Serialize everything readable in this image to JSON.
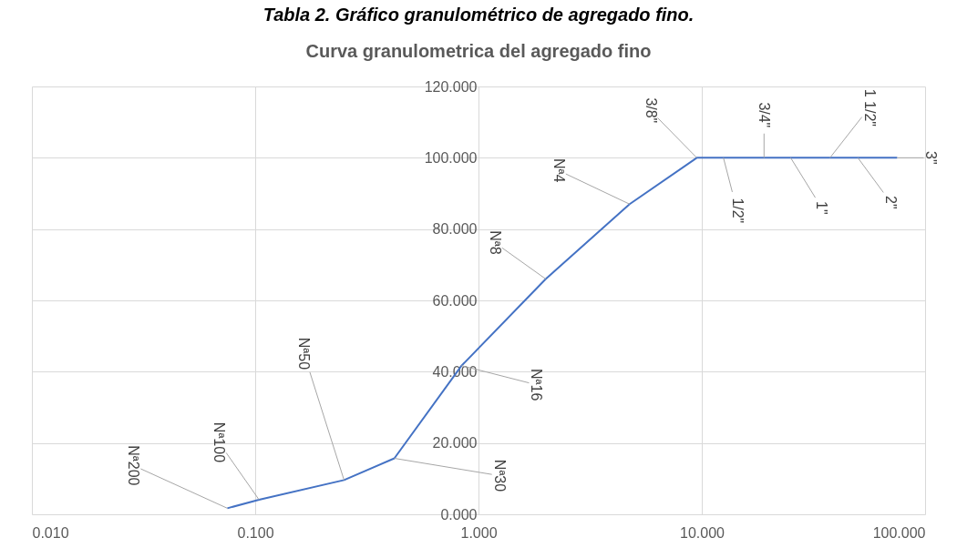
{
  "chart_data": {
    "type": "line",
    "title": "Curva granulometrica del agregado fino",
    "annotations": [
      "Tabla 2. Gráfico granulométrico de agregado fino.",
      {
        "text": "Nª200",
        "x": 0.075,
        "y": 1.7
      },
      {
        "text": "Nª100",
        "x": 0.104,
        "y": 4.1
      },
      {
        "text": "Nª50",
        "x": 0.25,
        "y": 9.6
      },
      {
        "text": "Nª30",
        "x": 0.42,
        "y": 15.7
      },
      {
        "text": "Nª16",
        "x": 0.84,
        "y": 41.7
      },
      {
        "text": "Nª8",
        "x": 2.0,
        "y": 66
      },
      {
        "text": "Nª4",
        "x": 4.75,
        "y": 87
      },
      {
        "text": "3/8\"",
        "x": 9.5,
        "y": 100
      },
      {
        "text": "1/2\"",
        "x": 12.5,
        "y": 100
      },
      {
        "text": "3/4\"",
        "x": 19,
        "y": 100
      },
      {
        "text": "1\"",
        "x": 25,
        "y": 100
      },
      {
        "text": "1 1/2\"",
        "x": 37.5,
        "y": 100
      },
      {
        "text": "2\"",
        "x": 50,
        "y": 100
      },
      {
        "text": "3\"",
        "x": 75,
        "y": 100
      }
    ],
    "x": [
      0.075,
      0.104,
      0.25,
      0.42,
      0.84,
      2.0,
      4.75,
      9.5,
      12.5,
      19,
      25,
      37.5,
      50,
      75
    ],
    "series": [
      {
        "color": "#4472c4",
        "values": [
          1.7,
          4.1,
          9.6,
          15.7,
          41.7,
          66,
          87,
          100,
          100,
          100,
          100,
          100,
          100,
          100
        ]
      }
    ],
    "log": "x",
    "xlim": [
      0.01,
      100
    ],
    "xticks": [
      {
        "value": 0.01,
        "label": "0.010"
      },
      {
        "value": 0.1,
        "label": "0.100"
      },
      {
        "value": 1,
        "label": "1.000"
      },
      {
        "value": 10,
        "label": "10.000"
      },
      {
        "value": 100,
        "label": "100.000"
      }
    ],
    "ylim": [
      0,
      120
    ],
    "yticks": [
      {
        "value": 0,
        "label": "0.000"
      },
      {
        "value": 20,
        "label": "20.000"
      },
      {
        "value": 40,
        "label": "40.000"
      },
      {
        "value": 60,
        "label": "60.000"
      },
      {
        "value": 80,
        "label": "80.000"
      },
      {
        "value": 100,
        "label": "100.000"
      },
      {
        "value": 120,
        "label": "120.000"
      }
    ],
    "grid": true,
    "marker": "none",
    "line_style": "solid",
    "legend": false
  }
}
